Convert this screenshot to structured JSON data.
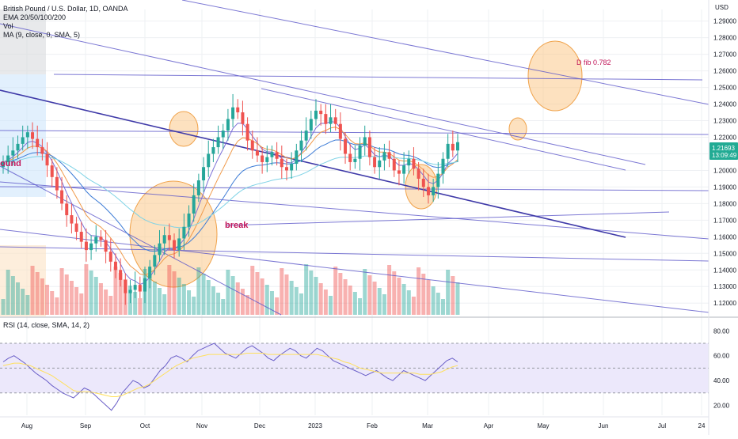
{
  "header": {
    "title": "British Pound / U.S. Dollar, 1D, OANDA",
    "indicators": [
      "EMA 20/50/100/200",
      "Vol",
      "MA (9, close, 0, SMA, 5)"
    ],
    "rsi_label": "RSI (14, close, SMA, 14, 2)",
    "currency": "USD"
  },
  "price_badge": {
    "price": "1.21693",
    "countdown": "13:09:49",
    "color": "#22ab94"
  },
  "annotations": {
    "fib": "D fib 0.782",
    "break": "break",
    "left_partial": "ound"
  },
  "colors": {
    "up": "#26a69a",
    "down": "#ef5350",
    "trendline": "#5b56c9",
    "circle": "#fbc98a",
    "rsi_line": "#6a5fc8",
    "rsi_ma": "#ffe05c",
    "rsi_band": "#ece8fb"
  },
  "chart_data": [
    {
      "type": "line",
      "title": "British Pound / U.S. Dollar, 1D, OANDA",
      "x_ticks": [
        "Aug",
        "Sep",
        "Oct",
        "Nov",
        "Dec",
        "2023",
        "Feb",
        "Mar",
        "Apr",
        "May",
        "Jun",
        "Jul",
        "24"
      ],
      "y_ticks": [
        1.12,
        1.13,
        1.14,
        1.15,
        1.16,
        1.17,
        1.18,
        1.19,
        1.2,
        1.21,
        1.22,
        1.23,
        1.24,
        1.25,
        1.26,
        1.27,
        1.28,
        1.29
      ],
      "ylim": [
        1.112,
        1.297
      ],
      "series": [
        {
          "name": "GBPUSD",
          "values": [
            1.205,
            1.209,
            1.212,
            1.216,
            1.22,
            1.223,
            1.219,
            1.214,
            1.21,
            1.203,
            1.196,
            1.188,
            1.18,
            1.173,
            1.168,
            1.163,
            1.157,
            1.152,
            1.156,
            1.16,
            1.158,
            1.151,
            1.145,
            1.14,
            1.134,
            1.126,
            1.128,
            1.131,
            1.127,
            1.135,
            1.142,
            1.149,
            1.156,
            1.161,
            1.158,
            1.152,
            1.159,
            1.166,
            1.174,
            1.185,
            1.194,
            1.202,
            1.21,
            1.214,
            1.22,
            1.224,
            1.231,
            1.238,
            1.235,
            1.228,
            1.218,
            1.212,
            1.209,
            1.205,
            1.208,
            1.211,
            1.207,
            1.202,
            1.2,
            1.204,
            1.212,
            1.218,
            1.224,
            1.231,
            1.236,
            1.234,
            1.228,
            1.232,
            1.228,
            1.219,
            1.21,
            1.205,
            1.207,
            1.215,
            1.22,
            1.208,
            1.202,
            1.206,
            1.211,
            1.207,
            1.2,
            1.198,
            1.203,
            1.207,
            1.201,
            1.195,
            1.19,
            1.185,
            1.19,
            1.198,
            1.207,
            1.216,
            1.212,
            1.217
          ]
        }
      ]
    },
    {
      "type": "line",
      "title": "RSI (14, close, SMA, 14, 2)",
      "x_ticks": [
        "Aug",
        "Sep",
        "Oct",
        "Nov",
        "Dec",
        "2023",
        "Feb",
        "Mar",
        "Apr",
        "May",
        "Jun",
        "Jul",
        "24"
      ],
      "y_ticks": [
        20,
        40,
        60,
        80
      ],
      "ylim": [
        12,
        84
      ],
      "series": [
        {
          "name": "RSI",
          "values": [
            55,
            58,
            60,
            57,
            54,
            50,
            46,
            43,
            40,
            36,
            33,
            30,
            28,
            26,
            30,
            34,
            32,
            28,
            24,
            20,
            16,
            22,
            30,
            35,
            40,
            38,
            34,
            36,
            42,
            48,
            52,
            58,
            60,
            58,
            55,
            60,
            64,
            66,
            68,
            70,
            66,
            62,
            60,
            58,
            62,
            66,
            68,
            65,
            62,
            58,
            56,
            60,
            63,
            66,
            64,
            60,
            58,
            62,
            66,
            64,
            60,
            56,
            54,
            52,
            50,
            48,
            46,
            44,
            46,
            48,
            45,
            42,
            40,
            44,
            48,
            46,
            44,
            42,
            40,
            44,
            48,
            52,
            56,
            58,
            55
          ]
        },
        {
          "name": "MA",
          "values": [
            52,
            53,
            54,
            54,
            53,
            52,
            50,
            48,
            46,
            44,
            41,
            38,
            35,
            32,
            31,
            31,
            31,
            30,
            29,
            28,
            27,
            27,
            28,
            30,
            32,
            34,
            35,
            37,
            40,
            43,
            46,
            49,
            52,
            54,
            56,
            58,
            59,
            60,
            61,
            61,
            61,
            61,
            61,
            61,
            61,
            62,
            62,
            62,
            62,
            61,
            61,
            61,
            61,
            61,
            61,
            61,
            61,
            61,
            61,
            60,
            59,
            58,
            57,
            55,
            54,
            52,
            50,
            49,
            48,
            47,
            46,
            46,
            46,
            46,
            46,
            46,
            46,
            45,
            45,
            45,
            46,
            47,
            49,
            51,
            52
          ]
        }
      ]
    }
  ]
}
